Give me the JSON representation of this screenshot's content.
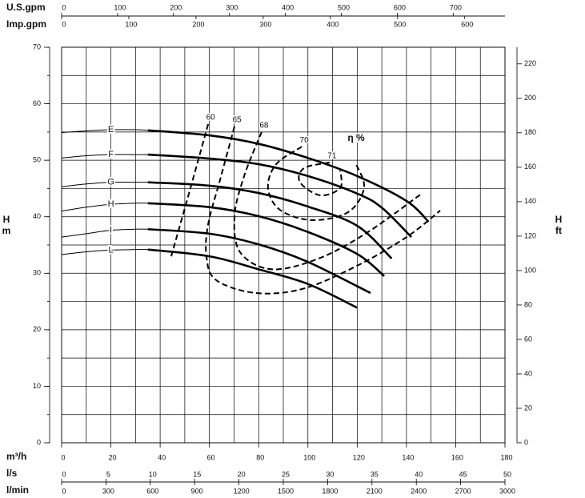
{
  "chart_data": {
    "type": "line",
    "xlabel": "m³/h",
    "xlim": [
      0,
      180
    ],
    "xticks": [
      0,
      20,
      40,
      60,
      80,
      100,
      120,
      140,
      160,
      180
    ],
    "xgrid": [
      0,
      10,
      20,
      30,
      40,
      50,
      60,
      70,
      80,
      90,
      100,
      110,
      120,
      130,
      140,
      150,
      160,
      170,
      180
    ],
    "ylabel": "H",
    "yunit": "m",
    "ylim": [
      0,
      70
    ],
    "yticks": [
      0,
      10,
      20,
      30,
      40,
      50,
      60,
      70
    ],
    "ygrid": [
      0,
      5,
      10,
      15,
      20,
      25,
      30,
      35,
      40,
      45,
      50,
      55,
      60,
      65,
      70
    ],
    "y2label": "H",
    "y2unit": "ft",
    "y2lim": [
      0,
      229.66
    ],
    "y2ticks": [
      0,
      20,
      40,
      60,
      80,
      100,
      120,
      140,
      160,
      180,
      200,
      220
    ],
    "grid": true,
    "color": "#000000",
    "flow_axes": [
      {
        "label": "U.S.gpm",
        "side": "top",
        "lim": [
          0,
          792.5
        ],
        "ticks": [
          0,
          100,
          200,
          300,
          400,
          500,
          600,
          700
        ]
      },
      {
        "label": "Imp.gpm",
        "side": "top",
        "lim": [
          0,
          659.9
        ],
        "ticks": [
          0,
          100,
          200,
          300,
          400,
          500,
          600
        ]
      },
      {
        "label": "l/s",
        "side": "bottom",
        "lim": [
          0,
          50
        ],
        "ticks": [
          0,
          5,
          10,
          15,
          20,
          25,
          30,
          35,
          40,
          45,
          50
        ]
      },
      {
        "label": "l/min",
        "side": "bottom",
        "lim": [
          0,
          3000
        ],
        "ticks": [
          0,
          300,
          600,
          900,
          1200,
          1500,
          1800,
          2100,
          2400,
          2700,
          3000
        ]
      }
    ],
    "thick_from": 35,
    "series": [
      {
        "name": "E",
        "x": [
          0,
          10,
          20,
          30,
          35,
          60,
          80,
          100,
          120,
          140,
          149
        ],
        "values": [
          54.9,
          55.2,
          55.4,
          55.4,
          55.3,
          54.4,
          52.9,
          50.4,
          47.2,
          42.8,
          39.1
        ]
      },
      {
        "name": "F",
        "x": [
          0,
          10,
          20,
          30,
          35,
          60,
          80,
          100,
          120,
          130,
          142
        ],
        "values": [
          50.4,
          50.8,
          51.0,
          51.0,
          51.0,
          50.3,
          49.3,
          47.2,
          44.1,
          41.6,
          36.4
        ]
      },
      {
        "name": "G",
        "x": [
          0,
          10,
          20,
          30,
          35,
          60,
          80,
          100,
          120,
          134
        ],
        "values": [
          45.3,
          45.8,
          46.1,
          46.1,
          46.1,
          45.5,
          44.2,
          41.8,
          38.4,
          32.6
        ]
      },
      {
        "name": "H",
        "x": [
          0,
          10,
          20,
          30,
          35,
          60,
          80,
          100,
          120,
          131
        ],
        "values": [
          41.0,
          41.7,
          42.2,
          42.4,
          42.4,
          41.7,
          40.1,
          37.3,
          33.4,
          29.5
        ]
      },
      {
        "name": "I",
        "x": [
          0,
          10,
          20,
          30,
          35,
          60,
          80,
          100,
          125.4
        ],
        "values": [
          36.4,
          37.0,
          37.6,
          37.8,
          37.8,
          37.0,
          35.1,
          32.0,
          26.5
        ]
      },
      {
        "name": "L",
        "x": [
          0,
          10,
          20,
          30,
          35,
          60,
          80,
          100,
          120
        ],
        "values": [
          33.3,
          33.8,
          34.1,
          34.2,
          34.2,
          33.0,
          30.7,
          28.1,
          23.9
        ]
      }
    ],
    "efficiency_label": "η %",
    "efficiency": [
      {
        "name": "60",
        "x": [
          59.5,
          52.0,
          44.5
        ],
        "values": [
          56.4,
          44.6,
          33.0
        ]
      },
      {
        "name": "65",
        "x": [
          70.2,
          64.3,
          59.5,
          58.8,
          62.7,
          78.9,
          98.4,
          121.2,
          140.7,
          153.7
        ],
        "values": [
          56.0,
          46.5,
          38.7,
          33.0,
          28.8,
          26.5,
          27.3,
          31.6,
          36.6,
          41.1
        ]
      },
      {
        "name": "68",
        "x": [
          81.2,
          74.1,
          70.2,
          72.5,
          85.4,
          104.9,
          124.4,
          145.6
        ],
        "values": [
          55.0,
          47.2,
          40.1,
          33.7,
          30.7,
          32.7,
          37.3,
          43.9
        ]
      },
      {
        "name": "70",
        "x": [
          97.5,
          87.1,
          83.8,
          88.7,
          101.7,
          116.3,
          122.8,
          119.6
        ],
        "values": [
          52.4,
          49.3,
          45.1,
          41.2,
          39.4,
          40.8,
          45.1,
          49.3
        ]
      },
      {
        "name": "71",
        "x": [
          108.8,
          98.4,
          96.8,
          104.9,
          113.1,
          113.1
        ],
        "values": [
          49.6,
          48.6,
          46.1,
          43.8,
          45.1,
          48.2
        ]
      }
    ]
  }
}
